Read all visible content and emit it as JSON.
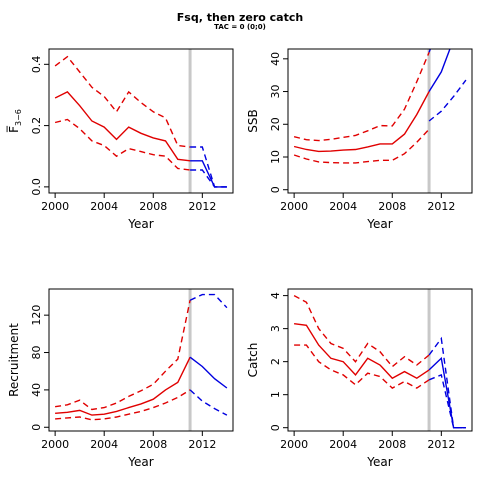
{
  "title": "Fsq, then zero catch",
  "subtitle": "TAC = 0 (0;0)",
  "colors": {
    "history": "#e00000",
    "projection": "#0000e0",
    "marker": "#c8c8c8"
  },
  "chart_data": [
    {
      "type": "line",
      "ylabel": "F̅",
      "ylabel_sub": "3−6",
      "xlabel": "Year",
      "xlim": [
        1999.5,
        2014.5
      ],
      "ylim": [
        -0.02,
        0.45
      ],
      "xticks": [
        2000,
        2004,
        2008,
        2012
      ],
      "yticks": [
        0,
        0.2,
        0.4
      ],
      "ytick_labels": [
        "0.0",
        "0.2",
        "0.4"
      ],
      "vline": 2011,
      "history": {
        "x": [
          2000,
          2001,
          2002,
          2003,
          2004,
          2005,
          2006,
          2007,
          2008,
          2009,
          2010,
          2011
        ],
        "median": [
          0.29,
          0.31,
          0.265,
          0.215,
          0.195,
          0.155,
          0.195,
          0.175,
          0.16,
          0.15,
          0.09,
          0.085
        ],
        "upper": [
          0.395,
          0.425,
          0.375,
          0.325,
          0.295,
          0.245,
          0.31,
          0.275,
          0.245,
          0.225,
          0.135,
          0.13
        ],
        "lower": [
          0.21,
          0.22,
          0.19,
          0.15,
          0.135,
          0.1,
          0.125,
          0.115,
          0.105,
          0.1,
          0.06,
          0.055
        ]
      },
      "projection": {
        "x": [
          2011,
          2012,
          2013,
          2014
        ],
        "median": [
          0.085,
          0.085,
          0,
          0
        ],
        "upper": [
          0.13,
          0.13,
          0,
          0
        ],
        "lower": [
          0.055,
          0.055,
          0,
          0
        ]
      }
    },
    {
      "type": "line",
      "ylabel": "SSB",
      "xlabel": "Year",
      "xlim": [
        1999.5,
        2014.5
      ],
      "ylim": [
        -1,
        43
      ],
      "xticks": [
        2000,
        2004,
        2008,
        2012
      ],
      "yticks": [
        0,
        10,
        20,
        30,
        40
      ],
      "ytick_labels": [
        "0",
        "10",
        "20",
        "30",
        "40"
      ],
      "vline": 2011,
      "history": {
        "x": [
          2000,
          2001,
          2002,
          2003,
          2004,
          2005,
          2006,
          2007,
          2008,
          2009,
          2010,
          2011
        ],
        "median": [
          13.2,
          12.3,
          11.7,
          11.8,
          12.1,
          12.3,
          13.1,
          14,
          14,
          17,
          23,
          30
        ],
        "upper": [
          16.2,
          15.3,
          15,
          15.4,
          16,
          16.6,
          18,
          19.6,
          19.5,
          24.6,
          33,
          42
        ],
        "lower": [
          10.6,
          9.4,
          8.5,
          8.3,
          8.2,
          8.2,
          8.6,
          9,
          9,
          11,
          14.5,
          18.5
        ]
      },
      "projection": {
        "x": [
          2011,
          2012,
          2013,
          2014
        ],
        "median": [
          30,
          36,
          46,
          55
        ],
        "upper": [
          42,
          52,
          62,
          72
        ],
        "lower": [
          21,
          24,
          28.5,
          33.5
        ]
      }
    },
    {
      "type": "line",
      "ylabel": "Recruitment",
      "xlabel": "Year",
      "xlim": [
        1999.5,
        2014.5
      ],
      "ylim": [
        -4,
        148
      ],
      "xticks": [
        2000,
        2004,
        2008,
        2012
      ],
      "yticks": [
        0,
        40,
        80,
        120
      ],
      "ytick_labels": [
        "0",
        "40",
        "80",
        "120"
      ],
      "vline": 2011,
      "history": {
        "x": [
          2000,
          2001,
          2002,
          2003,
          2004,
          2005,
          2006,
          2007,
          2008,
          2009,
          2010,
          2011
        ],
        "median": [
          15,
          16,
          18,
          13,
          14,
          17,
          21,
          25,
          30,
          40,
          48,
          75
        ],
        "upper": [
          22,
          24,
          29,
          19,
          21,
          26,
          33,
          39,
          46,
          60,
          73,
          136
        ],
        "lower": [
          9,
          10,
          11,
          8,
          9,
          11,
          14,
          17,
          21,
          26,
          32,
          40
        ]
      },
      "projection": {
        "x": [
          2011,
          2012,
          2013,
          2014
        ],
        "median": [
          75,
          65,
          52,
          42
        ],
        "upper": [
          136,
          142,
          142,
          128
        ],
        "lower": [
          40,
          28,
          20,
          13
        ]
      }
    },
    {
      "type": "line",
      "ylabel": "Catch",
      "xlabel": "Year",
      "xlim": [
        1999.5,
        2014.5
      ],
      "ylim": [
        -0.1,
        4.2
      ],
      "xticks": [
        2000,
        2004,
        2008,
        2012
      ],
      "yticks": [
        0,
        1,
        2,
        3,
        4
      ],
      "ytick_labels": [
        "0",
        "1",
        "2",
        "3",
        "4"
      ],
      "vline": 2011,
      "history": {
        "x": [
          2000,
          2001,
          2002,
          2003,
          2004,
          2005,
          2006,
          2007,
          2008,
          2009,
          2010,
          2011
        ],
        "median": [
          3.15,
          3.1,
          2.5,
          2.1,
          2,
          1.6,
          2.1,
          1.9,
          1.5,
          1.7,
          1.5,
          1.75
        ],
        "upper": [
          4,
          3.8,
          3,
          2.55,
          2.4,
          2,
          2.55,
          2.3,
          1.85,
          2.15,
          1.9,
          2.2
        ],
        "lower": [
          2.5,
          2.5,
          2,
          1.75,
          1.6,
          1.3,
          1.65,
          1.55,
          1.2,
          1.4,
          1.2,
          1.45
        ]
      },
      "projection": {
        "x": [
          2011,
          2012,
          2013,
          2014
        ],
        "median": [
          1.75,
          2.1,
          0,
          0
        ],
        "upper": [
          2.2,
          2.7,
          0,
          0
        ],
        "lower": [
          1.45,
          1.6,
          0,
          0
        ]
      }
    }
  ]
}
